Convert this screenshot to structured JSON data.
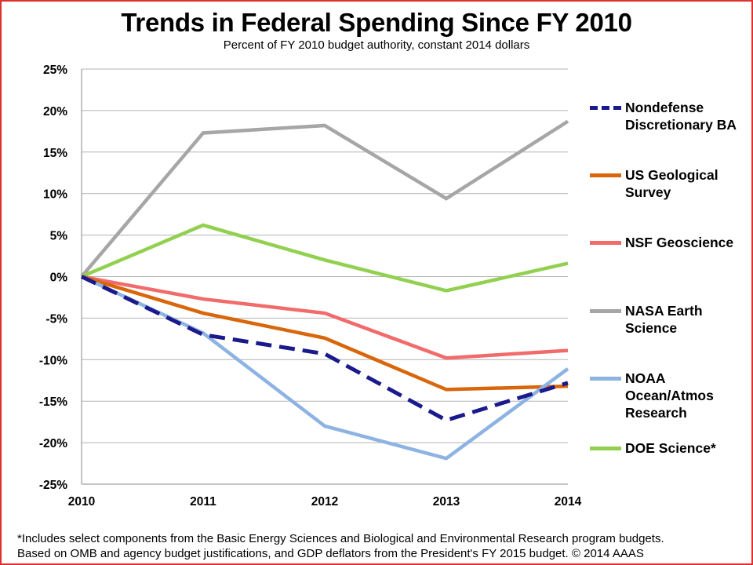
{
  "chart_data": {
    "type": "line",
    "title": "Trends in Federal Spending Since FY 2010",
    "subtitle": "Percent of FY 2010 budget authority, constant 2014 dollars",
    "xlabel": "",
    "ylabel": "",
    "x": [
      "2010",
      "2011",
      "2012",
      "2013",
      "2014"
    ],
    "ylim": [
      -25,
      25
    ],
    "ytick_values": [
      25,
      20,
      15,
      10,
      5,
      0,
      -5,
      -10,
      -15,
      -20,
      -25
    ],
    "ytick_labels": [
      "25%",
      "20%",
      "15%",
      "10%",
      "5%",
      "0%",
      "-5%",
      "-10%",
      "-15%",
      "-20%",
      "-25%"
    ],
    "grid": "horizontal",
    "legend_position": "right",
    "series": [
      {
        "name": "Nondefense Discretionary BA",
        "color": "#1a1a8c",
        "dashed": true,
        "values": [
          0,
          -7.0,
          -9.3,
          -17.3,
          -12.8
        ]
      },
      {
        "name": "US Geological Survey",
        "color": "#d9660b",
        "dashed": false,
        "values": [
          0,
          -4.4,
          -7.4,
          -13.6,
          -13.2
        ]
      },
      {
        "name": "NSF Geoscience",
        "color": "#f26b6b",
        "dashed": false,
        "values": [
          0,
          -2.7,
          -4.4,
          -9.8,
          -8.9
        ]
      },
      {
        "name": "NASA Earth Science",
        "color": "#a6a6a6",
        "dashed": false,
        "values": [
          0,
          17.3,
          18.2,
          9.4,
          18.7
        ]
      },
      {
        "name": "NOAA Ocean/Atmos Research",
        "color": "#8db3e2",
        "dashed": false,
        "values": [
          0,
          -6.8,
          -18.0,
          -21.9,
          -11.1
        ]
      },
      {
        "name": "DOE Science*",
        "color": "#92d050",
        "dashed": false,
        "values": [
          0,
          6.2,
          2.0,
          -1.7,
          1.6
        ]
      }
    ]
  },
  "legend": {
    "items": [
      {
        "line1": "Nondefense",
        "line2": "Discretionary BA"
      },
      {
        "line1": "US Geological",
        "line2": "Survey"
      },
      {
        "line1": "NSF Geoscience",
        "line2": ""
      },
      {
        "line1": "NASA Earth",
        "line2": "Science"
      },
      {
        "line1": "NOAA",
        "line2": "Ocean/Atmos",
        "line3": "Research"
      },
      {
        "line1": "DOE Science*",
        "line2": ""
      }
    ]
  },
  "footnote": {
    "line1": "*Includes select components from the Basic Energy Sciences and Biological and Environmental Research program budgets.",
    "line2": "Based on OMB and agency budget justifications, and GDP deflators from the President's FY 2015 budget. © 2014 AAAS"
  },
  "colors": {
    "border": "#e0302e",
    "grid": "#b3b3b3"
  }
}
